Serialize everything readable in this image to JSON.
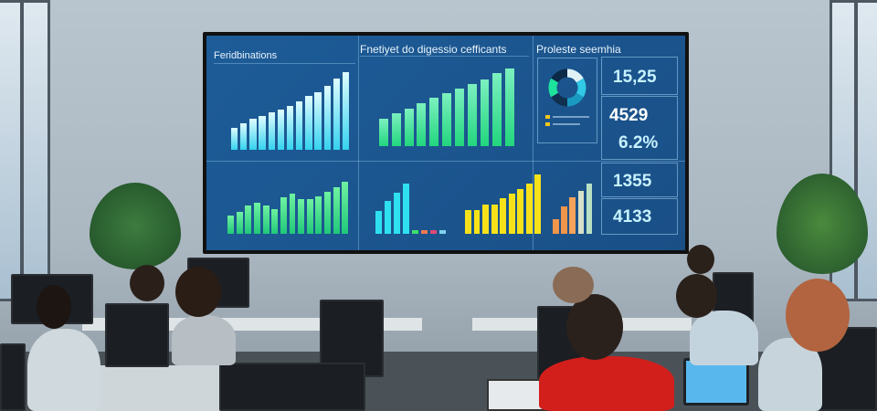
{
  "screen": {
    "panel_left_title": "Feridbinations",
    "panel_center_title": "Fnetiyet do digessio cefficants",
    "panel_right_title": "Proleste seemhia",
    "kpis": [
      "15,25",
      "4529",
      "6.2%",
      "1355",
      "4133"
    ],
    "charts": {
      "top_left_bars": [
        0.28,
        0.34,
        0.4,
        0.44,
        0.48,
        0.52,
        0.56,
        0.62,
        0.7,
        0.74,
        0.82,
        0.92,
        1.0
      ],
      "top_center_bars": [
        0.35,
        0.42,
        0.48,
        0.55,
        0.62,
        0.68,
        0.74,
        0.8,
        0.86,
        0.94,
        1.0
      ],
      "bottom_left_bars": [
        0.35,
        0.42,
        0.55,
        0.6,
        0.55,
        0.48,
        0.7,
        0.78,
        0.66,
        0.66,
        0.72,
        0.8,
        0.9,
        1.0
      ],
      "bottom_cyan_bars": [
        0.45,
        0.65,
        0.82,
        1.0,
        0.08,
        0.08,
        0.08,
        0.08
      ],
      "bottom_yellow_bars": [
        0.4,
        0.4,
        0.5,
        0.5,
        0.6,
        0.68,
        0.75,
        0.84,
        1.0
      ],
      "bottom_orange_bars": [
        0.3,
        0.55,
        0.72,
        0.85,
        1.0
      ]
    },
    "donut_colors": [
      "#dff3f7",
      "#30c9e6",
      "#1a9ac0",
      "#11304f",
      "#1de39c",
      "#0b2a48"
    ],
    "colors": {
      "cyan": "#2ee0f0",
      "green": "#2fe58f",
      "yellow": "#f7e21a",
      "orange": "#f0954a"
    }
  }
}
